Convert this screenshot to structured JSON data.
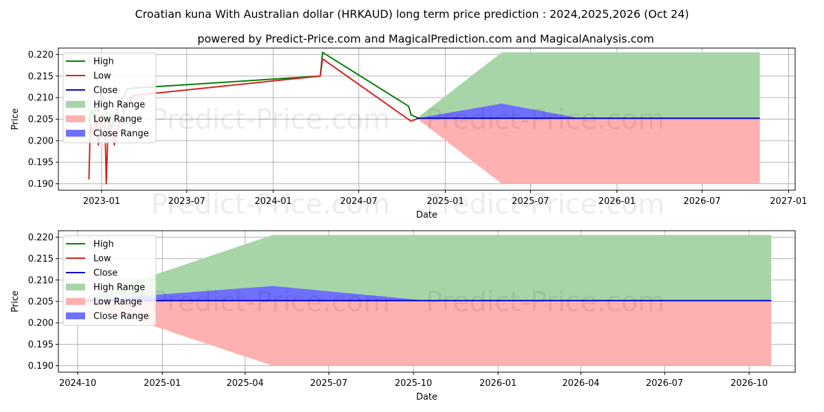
{
  "title": "Croatian kuna With Australian dollar (HRKAUD) long term price prediction : 2024,2025,2026 (Oct 24)",
  "subtitle": "powered by Predict-Price.com and MagicalPrediction.com and MagicalAnalysis.com",
  "watermark": "Predict-Price.com",
  "colors": {
    "high": "#008000",
    "low": "#d62020",
    "close": "#0000cc",
    "high_range": "#a8d5a8",
    "low_range": "#ffb0b0",
    "close_range": "#7070ff",
    "grid": "#b0b0b0"
  },
  "legend": [
    "High",
    "Low",
    "Close",
    "High Range",
    "Low Range",
    "Close Range"
  ],
  "chart_data": [
    {
      "type": "line",
      "name": "overview",
      "xlabel": "Date",
      "ylabel": "Price",
      "x_range": [
        "2022-10-01",
        "2027-01-15"
      ],
      "ylim": [
        0.1885,
        0.2215
      ],
      "y_ticks": [
        0.19,
        0.195,
        0.2,
        0.205,
        0.21,
        0.215,
        0.22
      ],
      "x_ticks": [
        {
          "date": "2023-01-01",
          "label": "2023-01"
        },
        {
          "date": "2023-07-01",
          "label": "2023-07"
        },
        {
          "date": "2024-01-01",
          "label": "2024-01"
        },
        {
          "date": "2024-07-01",
          "label": "2024-07"
        },
        {
          "date": "2025-01-01",
          "label": "2025-01"
        },
        {
          "date": "2025-07-01",
          "label": "2025-07"
        },
        {
          "date": "2026-01-01",
          "label": "2026-01"
        },
        {
          "date": "2026-07-01",
          "label": "2026-07"
        },
        {
          "date": "2027-01-01",
          "label": "2027-01"
        }
      ],
      "series": [
        {
          "name": "High",
          "points": [
            [
              "2022-12-05",
              0.2045
            ],
            [
              "2022-12-10",
              0.207
            ],
            [
              "2022-12-15",
              0.2055
            ],
            [
              "2022-12-20",
              0.208
            ],
            [
              "2022-12-25",
              0.2065
            ],
            [
              "2022-12-30",
              0.2115
            ],
            [
              "2023-01-04",
              0.21
            ],
            [
              "2023-01-08",
              0.2085
            ],
            [
              "2023-01-12",
              0.206
            ],
            [
              "2023-01-17",
              0.2045
            ],
            [
              "2023-01-22",
              0.203
            ],
            [
              "2023-01-27",
              0.205
            ],
            [
              "2023-02-03",
              0.207
            ],
            [
              "2023-02-10",
              0.209
            ],
            [
              "2023-02-17",
              0.21
            ],
            [
              "2023-02-24",
              0.212
            ],
            [
              "2023-03-10",
              0.2122
            ],
            [
              "2024-04-10",
              0.215
            ],
            [
              "2024-04-15",
              0.2205
            ],
            [
              "2024-10-15",
              0.208
            ],
            [
              "2024-10-20",
              0.206
            ],
            [
              "2024-11-05",
              0.2052
            ]
          ]
        },
        {
          "name": "Low",
          "points": [
            [
              "2022-12-05",
              0.191
            ],
            [
              "2022-12-08",
              0.204
            ],
            [
              "2022-12-15",
              0.201
            ],
            [
              "2022-12-20",
              0.206
            ],
            [
              "2022-12-25",
              0.199
            ],
            [
              "2022-12-30",
              0.204
            ],
            [
              "2023-01-04",
              0.206
            ],
            [
              "2023-01-08",
              0.204
            ],
            [
              "2023-01-11",
              0.19
            ],
            [
              "2023-01-15",
              0.204
            ],
            [
              "2023-01-20",
              0.201
            ],
            [
              "2023-01-24",
              0.202
            ],
            [
              "2023-01-28",
              0.199
            ],
            [
              "2023-02-02",
              0.201
            ],
            [
              "2023-02-08",
              0.204
            ],
            [
              "2023-02-15",
              0.206
            ],
            [
              "2023-02-22",
              0.208
            ],
            [
              "2023-03-10",
              0.2105
            ],
            [
              "2024-04-10",
              0.215
            ],
            [
              "2024-04-15",
              0.219
            ],
            [
              "2024-10-20",
              0.2045
            ],
            [
              "2024-11-05",
              0.2052
            ]
          ]
        },
        {
          "name": "Close",
          "points": [
            [
              "2024-11-01",
              0.2052
            ],
            [
              "2026-11-01",
              0.2052
            ]
          ]
        },
        {
          "name": "High Range",
          "points": [
            [
              "2024-11-01",
              0.2052
            ],
            [
              "2025-05-01",
              0.2205
            ],
            [
              "2026-11-01",
              0.2205
            ],
            [
              "2026-11-01",
              0.2052
            ],
            [
              "2024-11-01",
              0.2052
            ]
          ]
        },
        {
          "name": "Low Range",
          "points": [
            [
              "2024-11-01",
              0.2052
            ],
            [
              "2025-05-01",
              0.19
            ],
            [
              "2026-11-01",
              0.19
            ],
            [
              "2026-11-01",
              0.2052
            ],
            [
              "2024-11-01",
              0.2052
            ]
          ]
        },
        {
          "name": "Close Range",
          "points": [
            [
              "2024-11-01",
              0.2052
            ],
            [
              "2025-05-01",
              0.2086
            ],
            [
              "2025-10-15",
              0.2052
            ],
            [
              "2024-11-01",
              0.2052
            ]
          ]
        }
      ]
    },
    {
      "type": "line",
      "name": "prediction",
      "xlabel": "Date",
      "ylabel": "Price",
      "x_range": [
        "2024-09-10",
        "2026-11-20"
      ],
      "ylim": [
        0.1885,
        0.2215
      ],
      "y_ticks": [
        0.19,
        0.195,
        0.2,
        0.205,
        0.21,
        0.215,
        0.22
      ],
      "x_ticks": [
        {
          "date": "2024-10-01",
          "label": "2024-10"
        },
        {
          "date": "2025-01-01",
          "label": "2025-01"
        },
        {
          "date": "2025-04-01",
          "label": "2025-04"
        },
        {
          "date": "2025-07-01",
          "label": "2025-07"
        },
        {
          "date": "2025-10-01",
          "label": "2025-10"
        },
        {
          "date": "2026-01-01",
          "label": "2026-01"
        },
        {
          "date": "2026-04-01",
          "label": "2026-04"
        },
        {
          "date": "2026-07-01",
          "label": "2026-07"
        },
        {
          "date": "2026-10-01",
          "label": "2026-10"
        }
      ],
      "series": [
        {
          "name": "High",
          "points": []
        },
        {
          "name": "Low",
          "points": []
        },
        {
          "name": "Close",
          "points": [
            [
              "2024-10-01",
              0.2052
            ],
            [
              "2026-10-25",
              0.2052
            ]
          ]
        },
        {
          "name": "High Range",
          "points": [
            [
              "2024-10-01",
              0.2052
            ],
            [
              "2025-05-01",
              0.2205
            ],
            [
              "2026-10-25",
              0.2205
            ],
            [
              "2026-10-25",
              0.2052
            ],
            [
              "2024-10-01",
              0.2052
            ]
          ]
        },
        {
          "name": "Low Range",
          "points": [
            [
              "2024-10-01",
              0.2052
            ],
            [
              "2025-05-01",
              0.19
            ],
            [
              "2026-10-25",
              0.19
            ],
            [
              "2026-10-25",
              0.2052
            ],
            [
              "2024-10-01",
              0.2052
            ]
          ]
        },
        {
          "name": "Close Range",
          "points": [
            [
              "2024-10-01",
              0.2052
            ],
            [
              "2025-05-01",
              0.2086
            ],
            [
              "2025-10-15",
              0.2052
            ],
            [
              "2024-10-01",
              0.2052
            ]
          ]
        }
      ]
    }
  ]
}
